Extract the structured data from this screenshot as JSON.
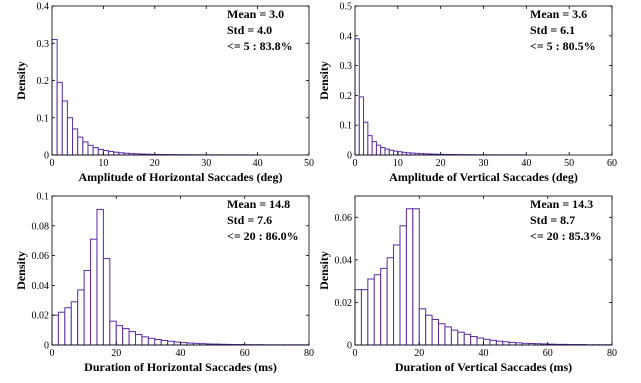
{
  "chart_data": [
    {
      "type": "bar",
      "x": [
        0.5,
        1.5,
        2.5,
        3.5,
        4.5,
        5.5,
        6.5,
        7.5,
        8.5,
        9.5,
        10.5,
        11.5,
        12.5,
        13.5,
        14.5,
        15.5,
        16.5,
        17.5,
        18.5,
        19.5,
        20.5,
        21.5,
        22.5,
        23.5,
        24.5,
        25.5,
        26.5,
        27.5,
        28.5,
        29.5,
        30.5,
        31.5,
        32.5,
        33.5,
        34.5,
        35.5,
        36.5,
        37.5,
        38.5,
        39.5
      ],
      "values": [
        0.31,
        0.195,
        0.145,
        0.1,
        0.07,
        0.048,
        0.035,
        0.026,
        0.02,
        0.015,
        0.012,
        0.0095,
        0.0075,
        0.006,
        0.0048,
        0.0039,
        0.0032,
        0.0026,
        0.0022,
        0.0018,
        0.0015,
        0.0013,
        0.0011,
        0.0009,
        0.0008,
        0.0007,
        0.0006,
        0.0005,
        0.0005,
        0.0004,
        0.0004,
        0.0003,
        0.0003,
        0.0003,
        0.0002,
        0.0002,
        0.0002,
        0.0002,
        0.0001,
        0.0001
      ],
      "bin_width": 1,
      "xlabel": "Amplitude of Horizontal Saccades (deg)",
      "ylabel": "Density",
      "xlim": [
        0,
        50
      ],
      "ylim": [
        0,
        0.4
      ],
      "xticks": [
        "0",
        "10",
        "20",
        "30",
        "40",
        "50"
      ],
      "yticks": [
        "0",
        "0.1",
        "0.2",
        "0.3",
        "0.4"
      ],
      "stats": [
        "Mean = 3.0",
        "Std = 4.0",
        "<= 5 : 83.8%"
      ],
      "bar_color": "#5b2aa8"
    },
    {
      "type": "bar",
      "x": [
        0.5,
        1.5,
        2.5,
        3.5,
        4.5,
        5.5,
        6.5,
        7.5,
        8.5,
        9.5,
        10.5,
        11.5,
        12.5,
        13.5,
        14.5,
        15.5,
        16.5,
        17.5,
        18.5,
        19.5,
        20.5,
        21.5,
        22.5,
        23.5,
        24.5,
        25.5,
        26.5,
        27.5,
        28.5,
        29.5,
        30.5,
        31.5,
        32.5,
        33.5,
        34.5,
        35.5,
        36.5,
        37.5,
        38.5,
        39.5
      ],
      "values": [
        0.39,
        0.195,
        0.11,
        0.065,
        0.045,
        0.033,
        0.025,
        0.02,
        0.016,
        0.013,
        0.011,
        0.009,
        0.0075,
        0.0065,
        0.0055,
        0.0047,
        0.004,
        0.0034,
        0.0029,
        0.0025,
        0.0021,
        0.0018,
        0.0016,
        0.0014,
        0.0012,
        0.001,
        0.0009,
        0.0008,
        0.0007,
        0.0006,
        0.0005,
        0.0005,
        0.0004,
        0.0004,
        0.0003,
        0.0003,
        0.0003,
        0.0002,
        0.0002,
        0.0002
      ],
      "bin_width": 1,
      "xlabel": "Amplitude of Vertical Saccades (deg)",
      "ylabel": "Density",
      "xlim": [
        0,
        60
      ],
      "ylim": [
        0,
        0.5
      ],
      "xticks": [
        "0",
        "10",
        "20",
        "30",
        "40",
        "50",
        "60"
      ],
      "yticks": [
        "0",
        "0.1",
        "0.2",
        "0.3",
        "0.4",
        "0.5"
      ],
      "stats": [
        "Mean = 3.6",
        "Std = 6.1",
        "<= 5 : 80.5%"
      ],
      "bar_color": "#5b2aa8"
    },
    {
      "type": "bar",
      "x": [
        1,
        3,
        5,
        7,
        9,
        11,
        13,
        15,
        17,
        19,
        21,
        23,
        25,
        27,
        29,
        31,
        33,
        35,
        37,
        39,
        41,
        43,
        45,
        47,
        49,
        51,
        53,
        55,
        57,
        59,
        61,
        63,
        65,
        67,
        69,
        71,
        73,
        75,
        77,
        79
      ],
      "values": [
        0.02,
        0.022,
        0.025,
        0.029,
        0.037,
        0.05,
        0.071,
        0.091,
        0.058,
        0.016,
        0.013,
        0.011,
        0.009,
        0.007,
        0.0055,
        0.0045,
        0.0037,
        0.003,
        0.0025,
        0.002,
        0.0016,
        0.0013,
        0.0011,
        0.0009,
        0.0007,
        0.0006,
        0.0005,
        0.0004,
        0.0003,
        0.0003,
        0.0002,
        0.0002,
        0.0002,
        0.0001,
        0.0001,
        0.0001,
        0.0001,
        0.0001,
        0.0001,
        0.0001
      ],
      "bin_width": 2,
      "xlabel": "Duration of Horizontal Saccades (ms)",
      "ylabel": "Density",
      "xlim": [
        0,
        80
      ],
      "ylim": [
        0,
        0.1
      ],
      "xticks": [
        "0",
        "20",
        "40",
        "60",
        "80"
      ],
      "yticks": [
        "0",
        "0.02",
        "0.04",
        "0.06",
        "0.08",
        "0.1"
      ],
      "stats": [
        "Mean = 14.8",
        "Std = 7.6",
        "<= 20 : 86.0%"
      ],
      "bar_color": "#5b2aa8"
    },
    {
      "type": "bar",
      "x": [
        1,
        3,
        5,
        7,
        9,
        11,
        13,
        15,
        17,
        19,
        21,
        23,
        25,
        27,
        29,
        31,
        33,
        35,
        37,
        39,
        41,
        43,
        45,
        47,
        49,
        51,
        53,
        55,
        57,
        59,
        61,
        63,
        65,
        67,
        69,
        71,
        73,
        75,
        77,
        79
      ],
      "values": [
        0.026,
        0.026,
        0.031,
        0.033,
        0.036,
        0.041,
        0.047,
        0.056,
        0.064,
        0.064,
        0.017,
        0.014,
        0.012,
        0.01,
        0.0085,
        0.007,
        0.006,
        0.005,
        0.004,
        0.0033,
        0.0027,
        0.0022,
        0.0018,
        0.0015,
        0.0012,
        0.001,
        0.0008,
        0.0007,
        0.0006,
        0.0005,
        0.0004,
        0.0003,
        0.0003,
        0.0002,
        0.0002,
        0.0002,
        0.0001,
        0.0001,
        0.0001,
        0.0001
      ],
      "bin_width": 2,
      "xlabel": "Duration of Vertical Saccades (ms)",
      "ylabel": "Density",
      "xlim": [
        0,
        80
      ],
      "ylim": [
        0,
        0.07
      ],
      "xticks": [
        "0",
        "20",
        "40",
        "60",
        "80"
      ],
      "yticks": [
        "0",
        "0.02",
        "0.04",
        "0.06"
      ],
      "stats": [
        "Mean = 14.3",
        "Std = 8.7",
        "<= 20 : 85.3%"
      ],
      "bar_color": "#5b2aa8"
    }
  ]
}
